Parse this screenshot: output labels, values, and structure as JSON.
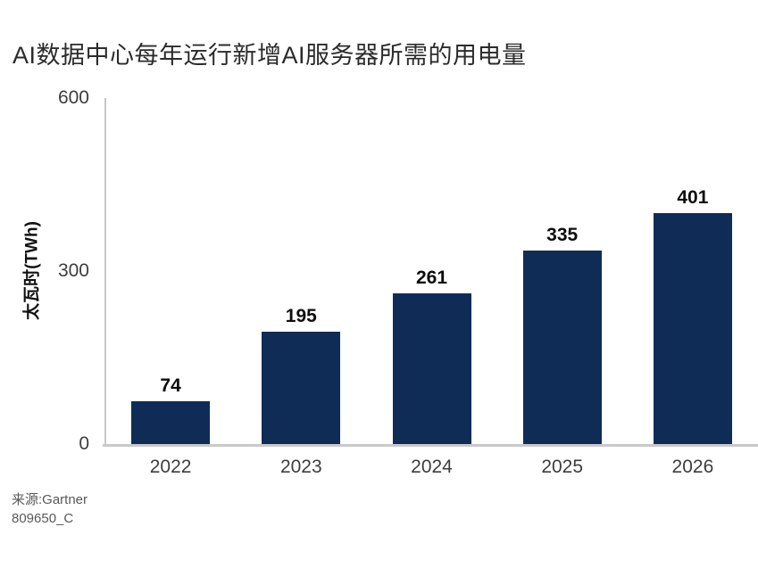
{
  "chart_data": {
    "type": "bar",
    "title": "AI数据中心每年运行新增AI服务器所需的用电量",
    "ylabel": "太瓦时(TWh)",
    "categories": [
      "2022",
      "2023",
      "2024",
      "2025",
      "2026"
    ],
    "values": [
      74,
      195,
      261,
      335,
      401
    ],
    "ylim": [
      0,
      600
    ],
    "yticks": [
      0,
      300,
      600
    ],
    "grid": false,
    "legend": "none",
    "bar_color": "#0E2C56"
  },
  "footer": {
    "source": "来源:Gartner",
    "doc_id": "809650_C"
  },
  "colors": {
    "bar": "#0E2C56",
    "axis_line": "#c8c8c8",
    "title_text": "#2b2b2b",
    "tick_text": "#3d3d3d",
    "value_text": "#0d0d0d",
    "source_text": "#595959",
    "background": "#ffffff"
  }
}
